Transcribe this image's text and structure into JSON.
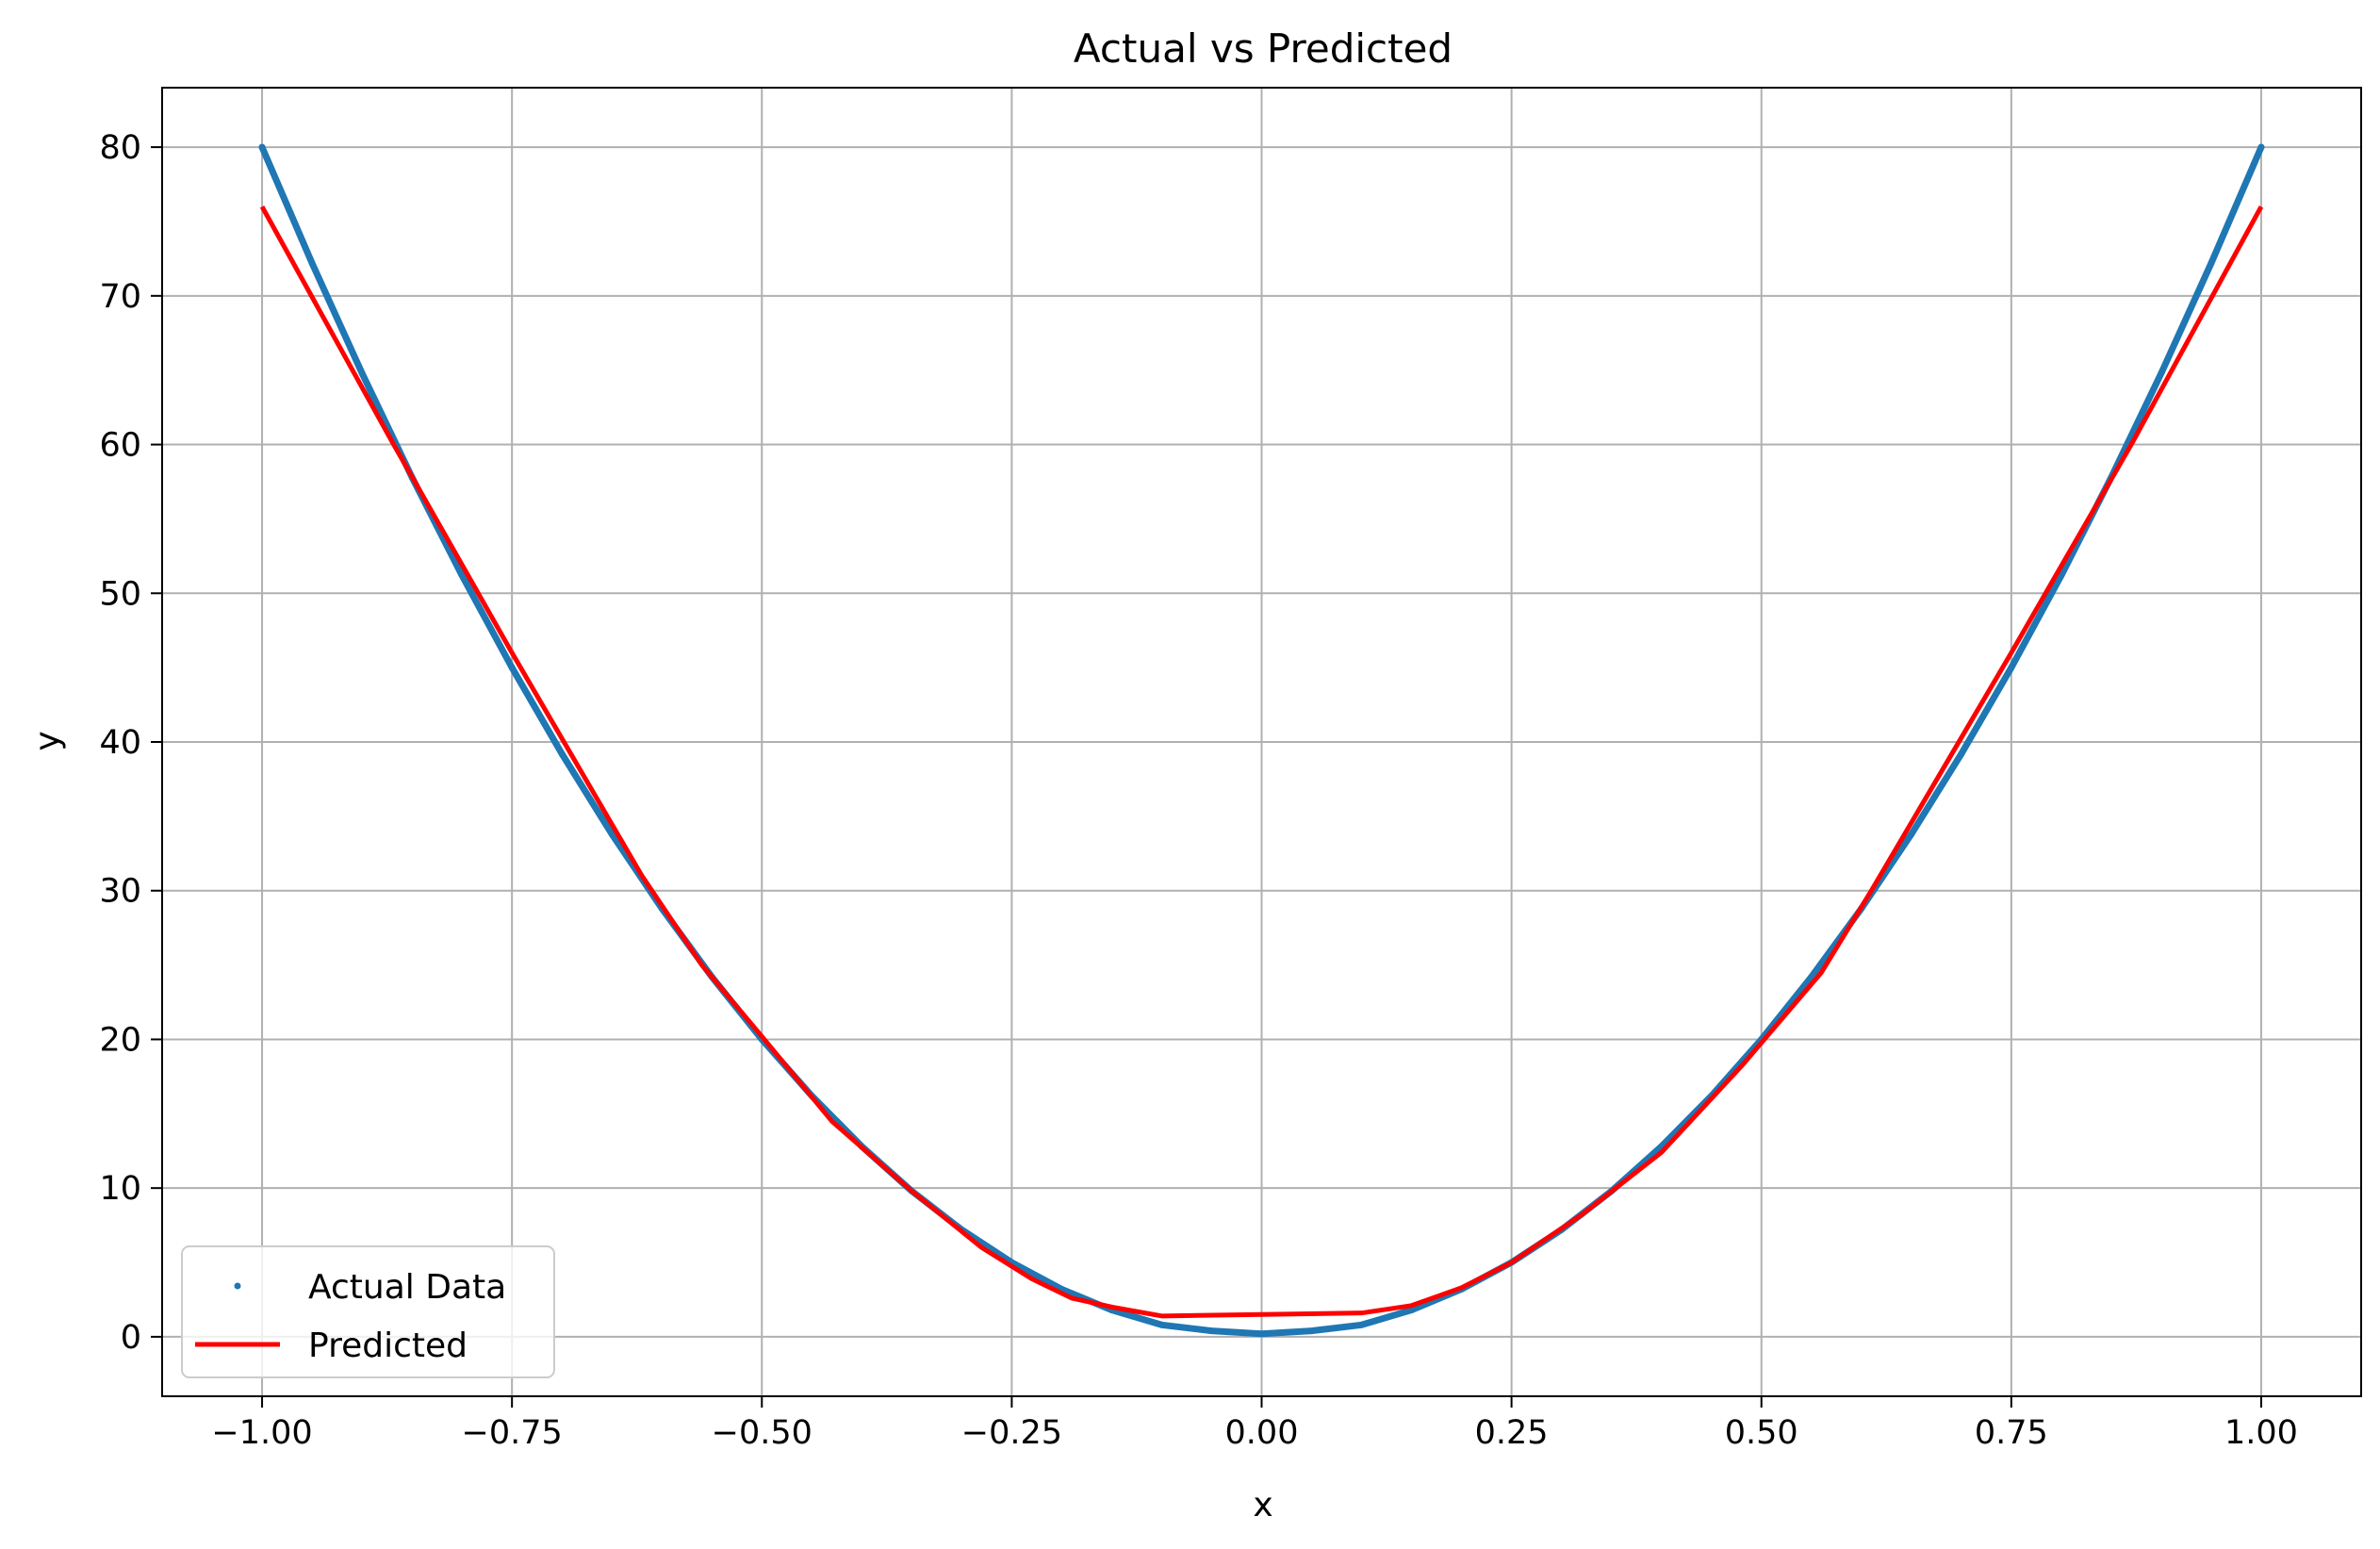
{
  "chart_data": {
    "type": "scatter",
    "title": "Actual vs Predicted",
    "xlabel": "x",
    "ylabel": "y",
    "xlim": [
      -1.1,
      1.1
    ],
    "ylim": [
      -4,
      84
    ],
    "xticks": [
      -1.0,
      -0.75,
      -0.5,
      -0.25,
      0.0,
      0.25,
      0.5,
      0.75,
      1.0
    ],
    "xtick_labels": [
      "−1.00",
      "−0.75",
      "−0.50",
      "−0.25",
      "0.00",
      "0.25",
      "0.50",
      "0.75",
      "1.00"
    ],
    "yticks": [
      0,
      10,
      20,
      30,
      40,
      50,
      60,
      70,
      80
    ],
    "ytick_labels": [
      "0",
      "10",
      "20",
      "30",
      "40",
      "50",
      "60",
      "70",
      "80"
    ],
    "grid": true,
    "legend_position": "lower-left",
    "series": [
      {
        "name": "Actual Data",
        "kind": "scatter",
        "color": "#1f77b4",
        "x": [
          -1.0,
          -0.95,
          -0.9,
          -0.85,
          -0.8,
          -0.75,
          -0.7,
          -0.65,
          -0.6,
          -0.55,
          -0.5,
          -0.45,
          -0.4,
          -0.35,
          -0.3,
          -0.25,
          -0.2,
          -0.15,
          -0.1,
          -0.05,
          0.0,
          0.05,
          0.1,
          0.15,
          0.2,
          0.25,
          0.3,
          0.35,
          0.4,
          0.45,
          0.5,
          0.55,
          0.6,
          0.65,
          0.7,
          0.75,
          0.8,
          0.85,
          0.9,
          0.95,
          1.0
        ],
        "y": [
          80.0,
          72.2,
          64.8,
          57.8,
          51.2,
          45.0,
          39.2,
          33.8,
          28.8,
          24.2,
          20.0,
          16.2,
          12.8,
          9.8,
          7.2,
          5.0,
          3.2,
          1.8,
          0.8,
          0.4,
          0.2,
          0.4,
          0.8,
          1.8,
          3.2,
          5.0,
          7.2,
          9.8,
          12.8,
          16.2,
          20.0,
          24.2,
          28.8,
          33.8,
          39.2,
          45.0,
          51.2,
          57.8,
          64.8,
          72.2,
          80.0
        ]
      },
      {
        "name": "Predicted",
        "kind": "line",
        "color": "#ff0000",
        "x": [
          -1.0,
          -0.87,
          -0.75,
          -0.62,
          -0.56,
          -0.5,
          -0.43,
          -0.35,
          -0.28,
          -0.23,
          -0.19,
          -0.15,
          -0.1,
          0.0,
          0.1,
          0.15,
          0.2,
          0.25,
          0.32,
          0.4,
          0.48,
          0.56,
          0.61,
          0.68,
          0.75,
          0.87,
          1.0
        ],
        "y": [
          76.0,
          60.2,
          46.0,
          31.0,
          25.0,
          20.2,
          14.5,
          9.8,
          6.0,
          3.9,
          2.6,
          2.0,
          1.4,
          1.5,
          1.6,
          2.1,
          3.3,
          5.0,
          8.2,
          12.4,
          18.2,
          24.5,
          30.0,
          38.0,
          46.0,
          60.0,
          76.0
        ]
      }
    ]
  }
}
